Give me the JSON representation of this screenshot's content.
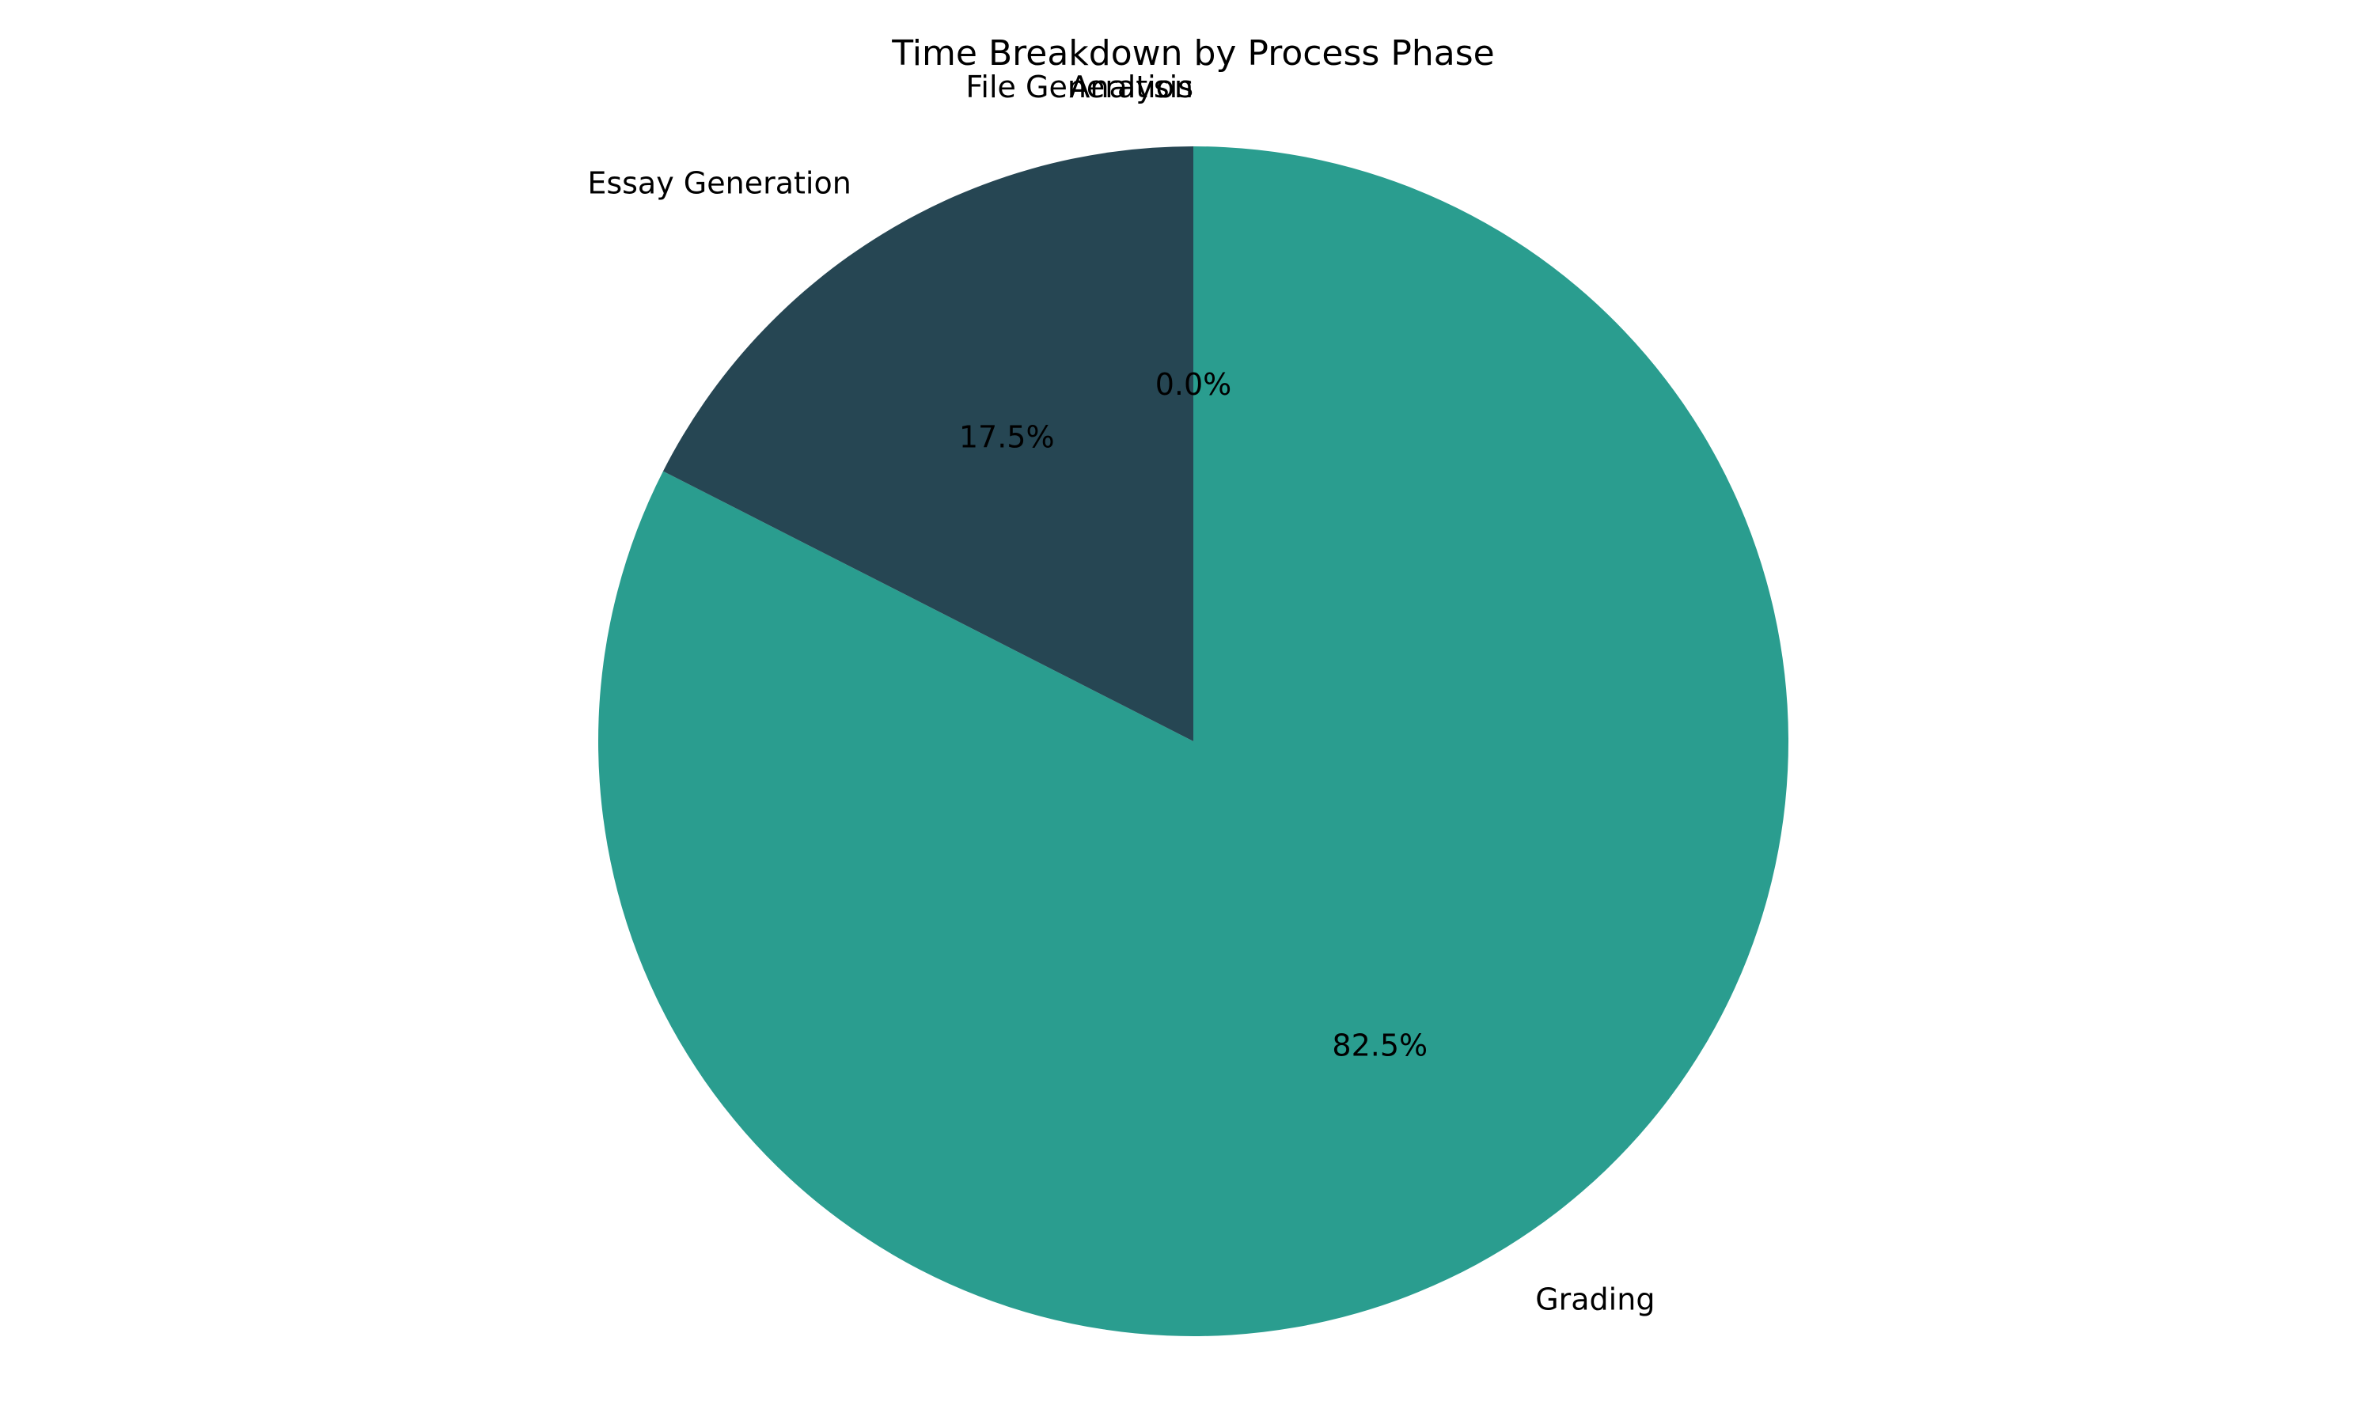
{
  "chart_data": {
    "type": "pie",
    "title": "Time Breakdown by Process Phase",
    "start_angle_deg": 90,
    "direction": "clockwise",
    "slices": [
      {
        "label": "File Generation",
        "value": 0.0,
        "pct_label": "",
        "color": "#e76f51"
      },
      {
        "label": "Analysis",
        "value": 0.0,
        "pct_label": "0.0%",
        "color": "#f4a261"
      },
      {
        "label": "Grading",
        "value": 82.5,
        "pct_label": "82.5%",
        "color": "#2a9d8f"
      },
      {
        "label": "Essay Generation",
        "value": 17.5,
        "pct_label": "17.5%",
        "color": "#264653"
      }
    ]
  }
}
